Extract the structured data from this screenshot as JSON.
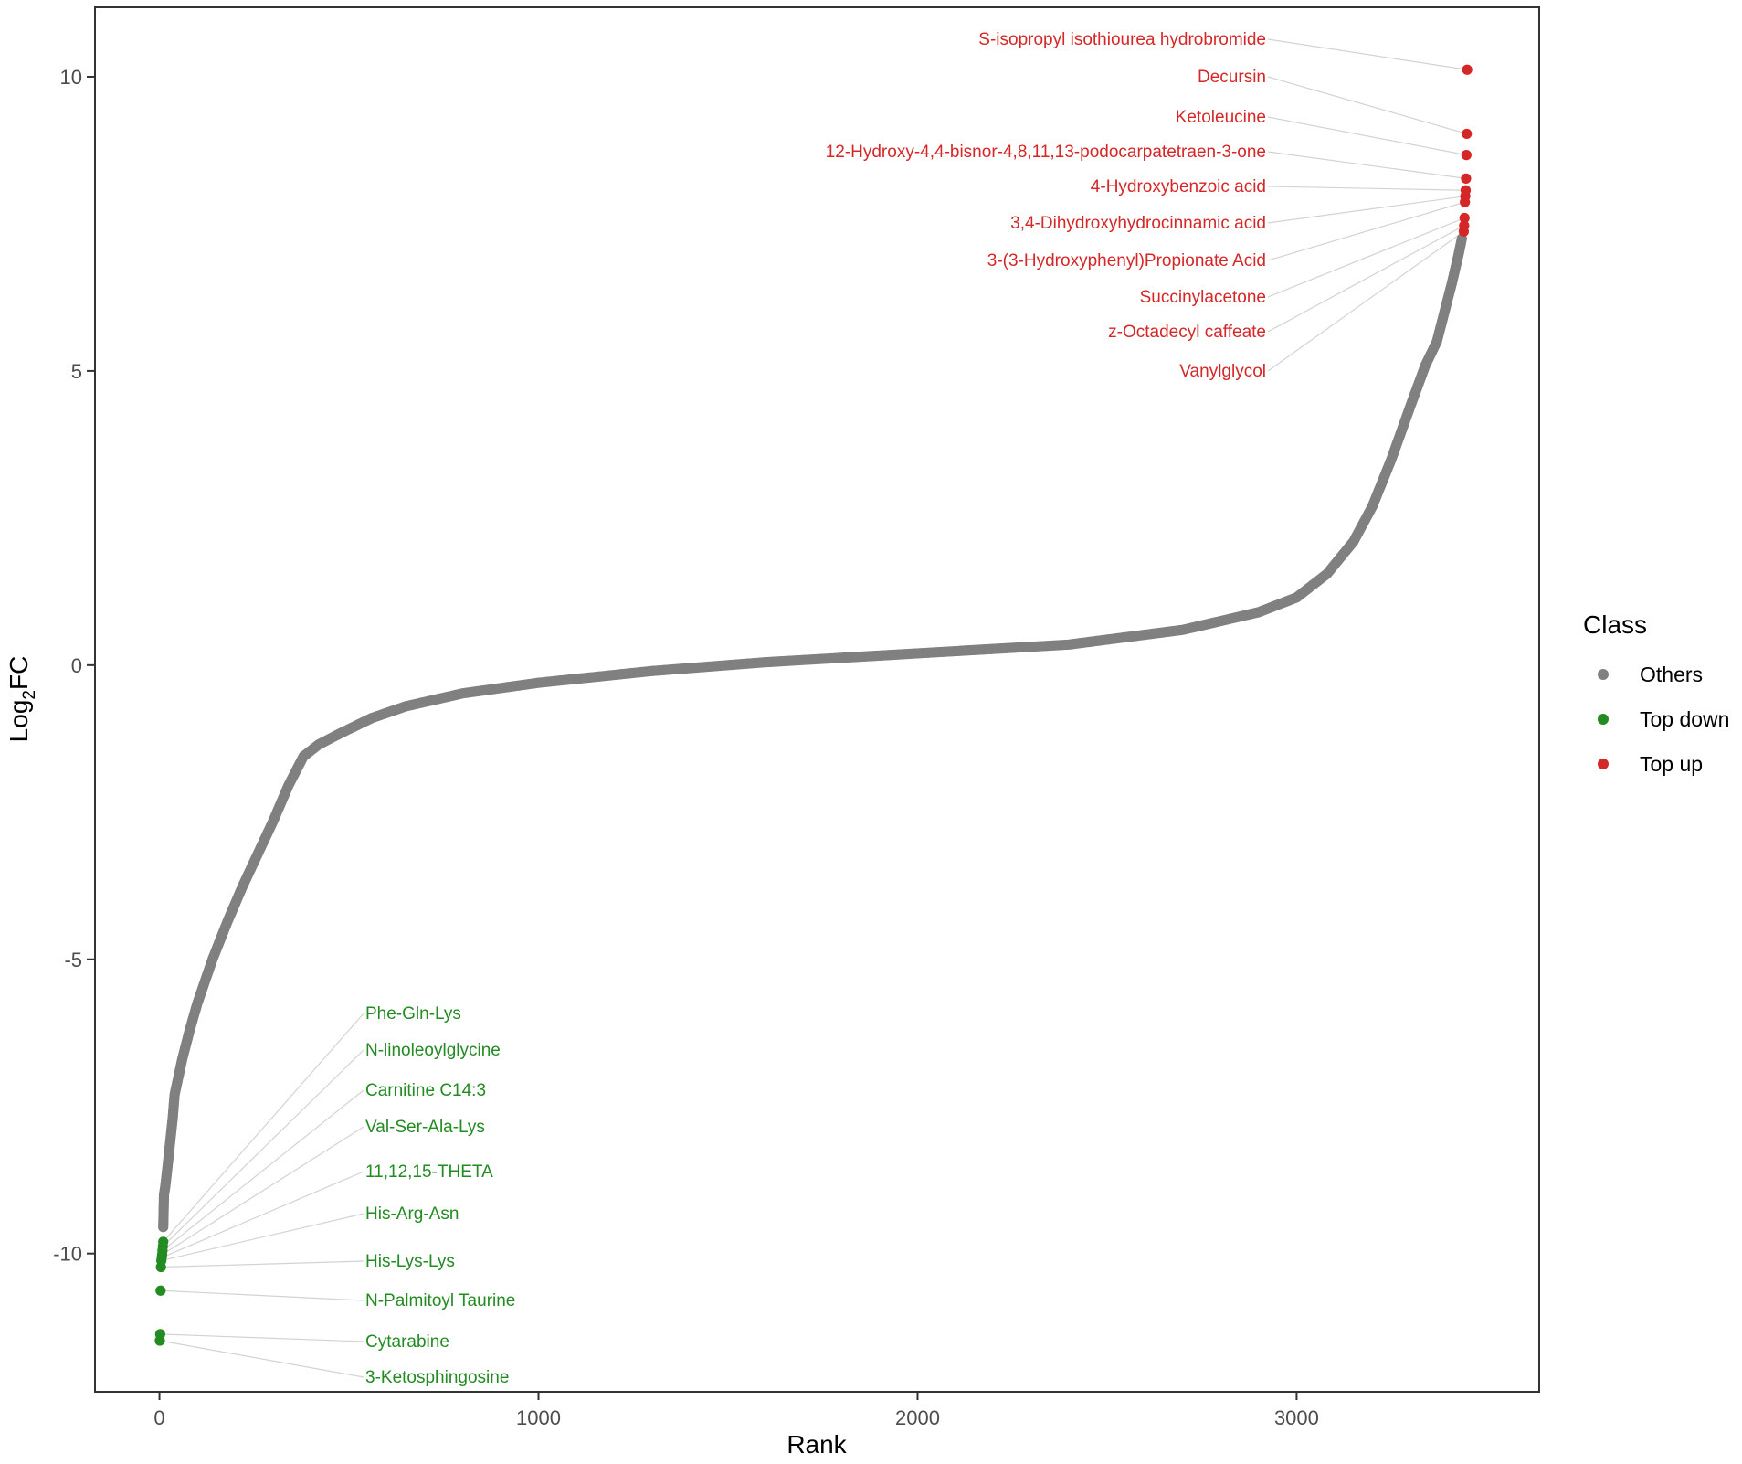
{
  "chart_data": {
    "type": "scatter",
    "xlabel": "Rank",
    "ylabel_main": "Log",
    "ylabel_sub": "2",
    "ylabel_tail": "FC",
    "xlim": [
      -170,
      3640
    ],
    "ylim": [
      -12.35,
      11.18
    ],
    "x_ticks": [
      0,
      1000,
      2000,
      3000
    ],
    "x_tick_labels": [
      "0",
      "1000",
      "2000",
      "3000"
    ],
    "y_ticks": [
      10,
      5,
      0,
      -5,
      -10
    ],
    "y_tick_labels": [
      "10",
      "5",
      "0",
      "-5",
      "-10"
    ],
    "grid": false,
    "legend_position": "right",
    "legend": {
      "title": "Class",
      "entries": [
        {
          "label": "Others",
          "color": "#808080"
        },
        {
          "label": "Top down",
          "color": "#228B22"
        },
        {
          "label": "Top up",
          "color": "#D62728"
        }
      ]
    },
    "colors": {
      "Others": "#808080",
      "Top down": "#228B22",
      "Top up": "#D62728",
      "connector": "#d3d3d3"
    },
    "others_curve": [
      [
        10,
        -9.55
      ],
      [
        12,
        -9.0
      ],
      [
        15,
        -8.88
      ],
      [
        20,
        -8.6
      ],
      [
        30,
        -8.0
      ],
      [
        35,
        -7.7
      ],
      [
        40,
        -7.3
      ],
      [
        60,
        -6.7
      ],
      [
        80,
        -6.2
      ],
      [
        100,
        -5.75
      ],
      [
        140,
        -5.0
      ],
      [
        180,
        -4.35
      ],
      [
        220,
        -3.75
      ],
      [
        260,
        -3.2
      ],
      [
        300,
        -2.65
      ],
      [
        340,
        -2.05
      ],
      [
        380,
        -1.55
      ],
      [
        420,
        -1.35
      ],
      [
        480,
        -1.15
      ],
      [
        560,
        -0.9
      ],
      [
        650,
        -0.7
      ],
      [
        800,
        -0.48
      ],
      [
        1000,
        -0.3
      ],
      [
        1300,
        -0.1
      ],
      [
        1600,
        0.05
      ],
      [
        2000,
        0.2
      ],
      [
        2400,
        0.35
      ],
      [
        2700,
        0.6
      ],
      [
        2900,
        0.9
      ],
      [
        3000,
        1.15
      ],
      [
        3080,
        1.55
      ],
      [
        3150,
        2.1
      ],
      [
        3200,
        2.7
      ],
      [
        3250,
        3.5
      ],
      [
        3300,
        4.4
      ],
      [
        3340,
        5.1
      ],
      [
        3370,
        5.5
      ],
      [
        3390,
        6.0
      ],
      [
        3410,
        6.5
      ],
      [
        3428,
        7.0
      ],
      [
        3436,
        7.25
      ]
    ],
    "top_up": [
      {
        "label": "S-isopropyl isothiourea hydrobromide",
        "x": 3450,
        "y": 10.12
      },
      {
        "label": "Decursin",
        "x": 3449,
        "y": 9.03
      },
      {
        "label": "Ketoleucine",
        "x": 3448,
        "y": 8.67
      },
      {
        "label": "12-Hydroxy-4,4-bisnor-4,8,11,13-podocarpatetraen-3-one",
        "x": 3447,
        "y": 8.27
      },
      {
        "label": "4-Hydroxybenzoic acid",
        "x": 3446,
        "y": 8.07
      },
      {
        "label": "3,4-Dihydroxyhydrocinnamic acid",
        "x": 3445,
        "y": 7.97
      },
      {
        "label": "3-(3-Hydroxyphenyl)Propionate Acid",
        "x": 3444,
        "y": 7.87
      },
      {
        "label": "Succinylacetone",
        "x": 3443,
        "y": 7.6
      },
      {
        "label": "z-Octadecyl caffeate",
        "x": 3442,
        "y": 7.47
      },
      {
        "label": "Vanylglycol",
        "x": 3441,
        "y": 7.37
      }
    ],
    "top_down": [
      {
        "label": "Phe-Gln-Lys",
        "x": 10,
        "y": -9.8
      },
      {
        "label": "N-linoleoylglycine",
        "x": 9,
        "y": -9.88
      },
      {
        "label": "Carnitine C14:3",
        "x": 8,
        "y": -9.95
      },
      {
        "label": "Val-Ser-Ala-Lys",
        "x": 7,
        "y": -10.02
      },
      {
        "label": "11,12,15-THETA",
        "x": 6,
        "y": -10.07
      },
      {
        "label": "His-Arg-Asn",
        "x": 5,
        "y": -10.12
      },
      {
        "label": "His-Lys-Lys",
        "x": 4,
        "y": -10.23
      },
      {
        "label": "N-Palmitoyl Taurine",
        "x": 3,
        "y": -10.63
      },
      {
        "label": "Cytarabine",
        "x": 2,
        "y": -11.37
      },
      {
        "label": "3-Ketosphingosine",
        "x": 1,
        "y": -11.48
      }
    ]
  }
}
